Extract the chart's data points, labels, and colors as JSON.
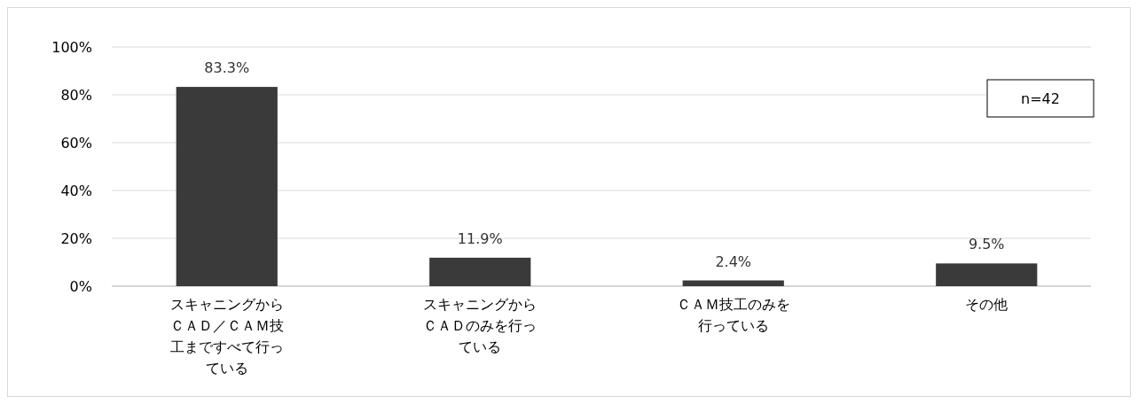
{
  "chart_data": {
    "type": "bar",
    "categories": [
      "スキャニングからＣＡＤ／ＣＡＭ技工まですべて行っている",
      "スキャニングからＣＡＤのみを行っている",
      "ＣＡＭ技工のみを行っている",
      "その他"
    ],
    "values": [
      83.3,
      11.9,
      2.4,
      9.5
    ],
    "value_labels": [
      "83.3%",
      "11.9%",
      "2.4%",
      "9.5%"
    ],
    "color": "#3a3a3a",
    "ylim": [
      0,
      100
    ],
    "yticks": [
      {
        "value": 0,
        "label": "0%"
      },
      {
        "value": 20,
        "label": "20%"
      },
      {
        "value": 40,
        "label": "40%"
      },
      {
        "value": 60,
        "label": "60%"
      },
      {
        "value": 80,
        "label": "80%"
      },
      {
        "value": 100,
        "label": "100%"
      }
    ],
    "grid": "y",
    "annotations": [
      "n=42"
    ]
  }
}
